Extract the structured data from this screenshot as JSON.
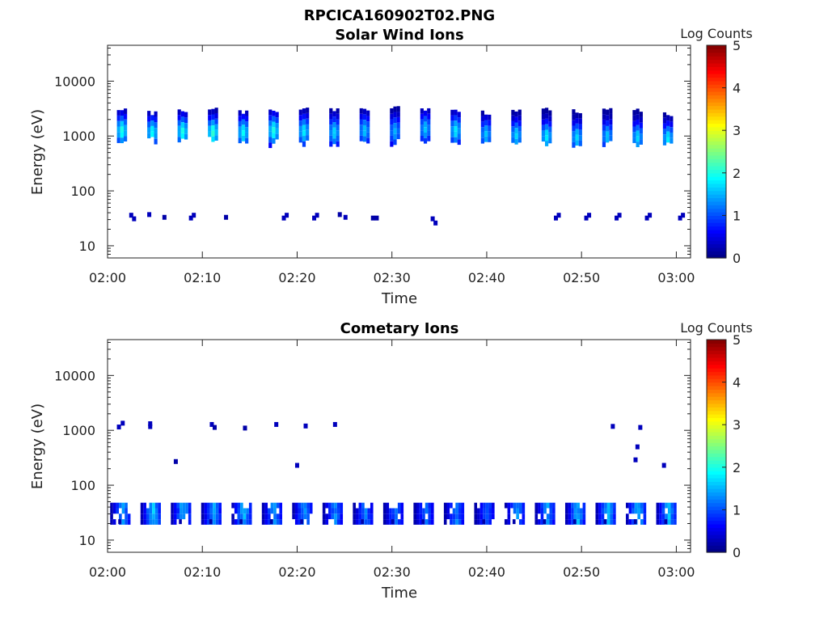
{
  "figure_title": "RPCICA160902T02.PNG",
  "colormap": [
    "#00007f",
    "#0000ff",
    "#007fff",
    "#00ffff",
    "#7fff7f",
    "#ffff00",
    "#ff7f00",
    "#ff0000",
    "#7f0000"
  ],
  "chart_data": [
    {
      "type": "heatmap",
      "title": "Solar Wind Ions",
      "xlabel": "Time",
      "ylabel": "Energy (eV)",
      "x_ticks": [
        "02:00",
        "02:10",
        "02:20",
        "02:30",
        "02:40",
        "02:50",
        "03:00"
      ],
      "x_range_minutes": [
        0,
        61.5
      ],
      "y_scale": "log",
      "y_range": [
        6,
        45000
      ],
      "y_ticks": [
        "10",
        "100",
        "1000",
        "10000"
      ],
      "colorbar": {
        "label": "Log Counts",
        "range": [
          0,
          5
        ],
        "ticks": [
          "0",
          "1",
          "2",
          "3",
          "4",
          "5"
        ]
      },
      "sweeps": [
        {
          "t": 1.5,
          "emin": 800,
          "emax": 3200,
          "peak": 1400,
          "max": 2.0
        },
        {
          "t": 4.7,
          "emin": 850,
          "emax": 3100,
          "peak": 1300,
          "max": 1.9
        },
        {
          "t": 7.9,
          "emin": 800,
          "emax": 3300,
          "peak": 1350,
          "max": 2.0
        },
        {
          "t": 11.1,
          "emin": 800,
          "emax": 3300,
          "peak": 1300,
          "max": 2.1
        },
        {
          "t": 14.3,
          "emin": 750,
          "emax": 3200,
          "peak": 1300,
          "max": 1.9
        },
        {
          "t": 17.5,
          "emin": 750,
          "emax": 3300,
          "peak": 1400,
          "max": 2.0
        },
        {
          "t": 20.7,
          "emin": 750,
          "emax": 3300,
          "peak": 1350,
          "max": 1.8
        },
        {
          "t": 23.9,
          "emin": 700,
          "emax": 3500,
          "peak": 1300,
          "max": 1.7
        },
        {
          "t": 27.1,
          "emin": 750,
          "emax": 3500,
          "peak": 1400,
          "max": 1.6
        },
        {
          "t": 30.3,
          "emin": 750,
          "emax": 3500,
          "peak": 1350,
          "max": 1.5
        },
        {
          "t": 33.5,
          "emin": 750,
          "emax": 3500,
          "peak": 1500,
          "max": 1.6
        },
        {
          "t": 36.7,
          "emin": 750,
          "emax": 3300,
          "peak": 1400,
          "max": 1.8
        },
        {
          "t": 39.9,
          "emin": 650,
          "emax": 3200,
          "peak": 1200,
          "max": 1.6
        },
        {
          "t": 43.1,
          "emin": 700,
          "emax": 3300,
          "peak": 1150,
          "max": 1.7
        },
        {
          "t": 46.3,
          "emin": 750,
          "emax": 3500,
          "peak": 1100,
          "max": 1.8
        },
        {
          "t": 49.5,
          "emin": 650,
          "emax": 3400,
          "peak": 1050,
          "max": 1.7
        },
        {
          "t": 52.7,
          "emin": 700,
          "emax": 3500,
          "peak": 1100,
          "max": 1.6
        },
        {
          "t": 55.9,
          "emin": 750,
          "emax": 3300,
          "peak": 1050,
          "max": 1.7
        },
        {
          "t": 59.1,
          "emin": 750,
          "emax": 3000,
          "peak": 1000,
          "max": 1.8
        }
      ],
      "points": [
        {
          "t": 2.5,
          "e": 36,
          "v": 0.3
        },
        {
          "t": 2.8,
          "e": 31,
          "v": 0.3
        },
        {
          "t": 4.4,
          "e": 37,
          "v": 0.3
        },
        {
          "t": 6.0,
          "e": 33,
          "v": 0.2
        },
        {
          "t": 8.8,
          "e": 32,
          "v": 0.3
        },
        {
          "t": 9.1,
          "e": 36,
          "v": 0.3
        },
        {
          "t": 12.5,
          "e": 33,
          "v": 0.2
        },
        {
          "t": 18.6,
          "e": 32,
          "v": 0.3
        },
        {
          "t": 18.9,
          "e": 36,
          "v": 0.3
        },
        {
          "t": 21.8,
          "e": 32,
          "v": 0.3
        },
        {
          "t": 22.1,
          "e": 36,
          "v": 0.3
        },
        {
          "t": 24.5,
          "e": 37,
          "v": 0.2
        },
        {
          "t": 25.1,
          "e": 33,
          "v": 0.3
        },
        {
          "t": 28.0,
          "e": 32,
          "v": 0.2
        },
        {
          "t": 28.4,
          "e": 32,
          "v": 0.2
        },
        {
          "t": 34.3,
          "e": 31,
          "v": 0.3
        },
        {
          "t": 34.6,
          "e": 26,
          "v": 0.3
        },
        {
          "t": 47.3,
          "e": 32,
          "v": 0.3
        },
        {
          "t": 47.6,
          "e": 36,
          "v": 0.3
        },
        {
          "t": 50.5,
          "e": 32,
          "v": 0.3
        },
        {
          "t": 50.8,
          "e": 36,
          "v": 0.3
        },
        {
          "t": 53.7,
          "e": 32,
          "v": 0.3
        },
        {
          "t": 54.0,
          "e": 36,
          "v": 0.3
        },
        {
          "t": 56.9,
          "e": 32,
          "v": 0.3
        },
        {
          "t": 57.2,
          "e": 36,
          "v": 0.3
        },
        {
          "t": 60.4,
          "e": 32,
          "v": 0.3
        },
        {
          "t": 60.7,
          "e": 36,
          "v": 0.3
        }
      ]
    },
    {
      "type": "heatmap",
      "title": "Cometary Ions",
      "xlabel": "Time",
      "ylabel": "Energy (eV)",
      "x_ticks": [
        "02:00",
        "02:10",
        "02:20",
        "02:30",
        "02:40",
        "02:50",
        "03:00"
      ],
      "x_range_minutes": [
        0,
        61.5
      ],
      "y_scale": "log",
      "y_range": [
        6,
        45000
      ],
      "y_ticks": [
        "10",
        "100",
        "1000",
        "10000"
      ],
      "colorbar": {
        "label": "Log Counts",
        "range": [
          0,
          5
        ],
        "ticks": [
          "0",
          "1",
          "2",
          "3",
          "4",
          "5"
        ]
      },
      "blocks": [
        {
          "t": 1.3,
          "max": 1.6
        },
        {
          "t": 4.5,
          "max": 1.8
        },
        {
          "t": 7.7,
          "max": 1.7
        },
        {
          "t": 10.9,
          "max": 1.6
        },
        {
          "t": 14.1,
          "max": 1.7
        },
        {
          "t": 17.3,
          "max": 1.6
        },
        {
          "t": 20.5,
          "max": 1.6
        },
        {
          "t": 23.7,
          "max": 1.5
        },
        {
          "t": 26.9,
          "max": 1.4
        },
        {
          "t": 30.1,
          "max": 1.3
        },
        {
          "t": 33.3,
          "max": 1.3
        },
        {
          "t": 36.5,
          "max": 1.4
        },
        {
          "t": 39.7,
          "max": 1.2
        },
        {
          "t": 42.9,
          "max": 1.5
        },
        {
          "t": 46.1,
          "max": 1.6
        },
        {
          "t": 49.3,
          "max": 1.7
        },
        {
          "t": 52.5,
          "max": 1.7
        },
        {
          "t": 55.7,
          "max": 1.8
        },
        {
          "t": 58.9,
          "max": 1.8
        }
      ],
      "points": [
        {
          "t": 1.2,
          "e": 1150,
          "v": 0.3
        },
        {
          "t": 1.6,
          "e": 1350,
          "v": 0.3
        },
        {
          "t": 4.5,
          "e": 1320,
          "v": 0.3
        },
        {
          "t": 4.5,
          "e": 1170,
          "v": 0.3
        },
        {
          "t": 7.2,
          "e": 270,
          "v": 0.2
        },
        {
          "t": 11.0,
          "e": 1280,
          "v": 0.3
        },
        {
          "t": 11.3,
          "e": 1130,
          "v": 0.2
        },
        {
          "t": 14.5,
          "e": 1100,
          "v": 0.2
        },
        {
          "t": 17.8,
          "e": 1280,
          "v": 0.3
        },
        {
          "t": 20.0,
          "e": 230,
          "v": 0.3
        },
        {
          "t": 20.9,
          "e": 1200,
          "v": 0.3
        },
        {
          "t": 24.0,
          "e": 1280,
          "v": 0.3
        },
        {
          "t": 53.3,
          "e": 1180,
          "v": 0.3
        },
        {
          "t": 55.7,
          "e": 290,
          "v": 0.3
        },
        {
          "t": 55.9,
          "e": 500,
          "v": 0.3
        },
        {
          "t": 56.2,
          "e": 1130,
          "v": 0.3
        },
        {
          "t": 58.7,
          "e": 230,
          "v": 0.3
        }
      ]
    }
  ]
}
